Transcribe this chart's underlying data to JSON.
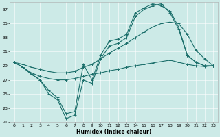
{
  "xlabel": "Humidex (Indice chaleur)",
  "background_color": "#cceae7",
  "line_color": "#1a6e6a",
  "xlim": [
    -0.5,
    23.5
  ],
  "ylim": [
    21,
    38
  ],
  "yticks": [
    21,
    23,
    25,
    27,
    29,
    31,
    33,
    35,
    37
  ],
  "xticks": [
    0,
    1,
    2,
    3,
    4,
    5,
    6,
    7,
    8,
    9,
    10,
    11,
    12,
    13,
    14,
    15,
    16,
    17,
    18,
    19,
    20,
    21,
    22,
    23
  ],
  "series": [
    {
      "x": [
        0,
        1,
        2,
        3,
        4,
        5,
        6,
        7,
        8,
        9,
        10,
        11,
        12,
        13,
        14,
        15,
        16,
        17,
        18,
        19,
        20,
        21,
        22,
        23
      ],
      "y": [
        29.5,
        28.8,
        28.0,
        27.5,
        27.2,
        27.0,
        27.0,
        27.2,
        27.5,
        27.8,
        28.0,
        28.3,
        28.5,
        28.8,
        29.0,
        29.2,
        29.4,
        29.6,
        29.8,
        29.5,
        29.2,
        29.0,
        28.9,
        29.0
      ]
    },
    {
      "x": [
        0,
        1,
        2,
        3,
        4,
        5,
        6,
        7,
        8,
        9,
        10,
        11,
        12,
        13,
        14,
        15,
        16,
        17,
        18,
        19,
        20,
        21,
        22,
        23
      ],
      "y": [
        29.5,
        29.2,
        28.8,
        28.5,
        28.2,
        28.0,
        28.0,
        28.2,
        28.8,
        29.2,
        30.0,
        30.8,
        31.5,
        32.2,
        33.0,
        33.8,
        34.5,
        35.0,
        35.2,
        35.0,
        33.5,
        31.2,
        30.0,
        29.0
      ]
    },
    {
      "x": [
        0,
        1,
        2,
        3,
        4,
        5,
        6,
        7,
        8,
        9,
        10,
        11,
        12,
        13,
        14,
        15,
        16,
        17,
        18,
        19,
        20,
        21,
        22,
        23
      ],
      "y": [
        29.5,
        28.8,
        27.8,
        27.0,
        25.5,
        24.5,
        22.2,
        22.5,
        29.2,
        27.0,
        30.5,
        32.5,
        32.8,
        33.5,
        36.5,
        37.2,
        37.8,
        37.5,
        36.8,
        34.5,
        30.5,
        29.5,
        29.0,
        29.0
      ]
    },
    {
      "x": [
        0,
        1,
        2,
        3,
        4,
        5,
        6,
        7,
        8,
        9,
        10,
        11,
        12,
        13,
        14,
        15,
        16,
        17,
        18,
        19,
        20,
        21,
        22,
        23
      ],
      "y": [
        29.5,
        28.8,
        27.8,
        27.0,
        25.0,
        24.2,
        21.5,
        22.0,
        27.0,
        26.5,
        30.0,
        31.8,
        32.2,
        33.0,
        36.0,
        37.0,
        37.5,
        37.8,
        36.5,
        34.2,
        30.5,
        29.5,
        29.0,
        29.0
      ]
    }
  ]
}
